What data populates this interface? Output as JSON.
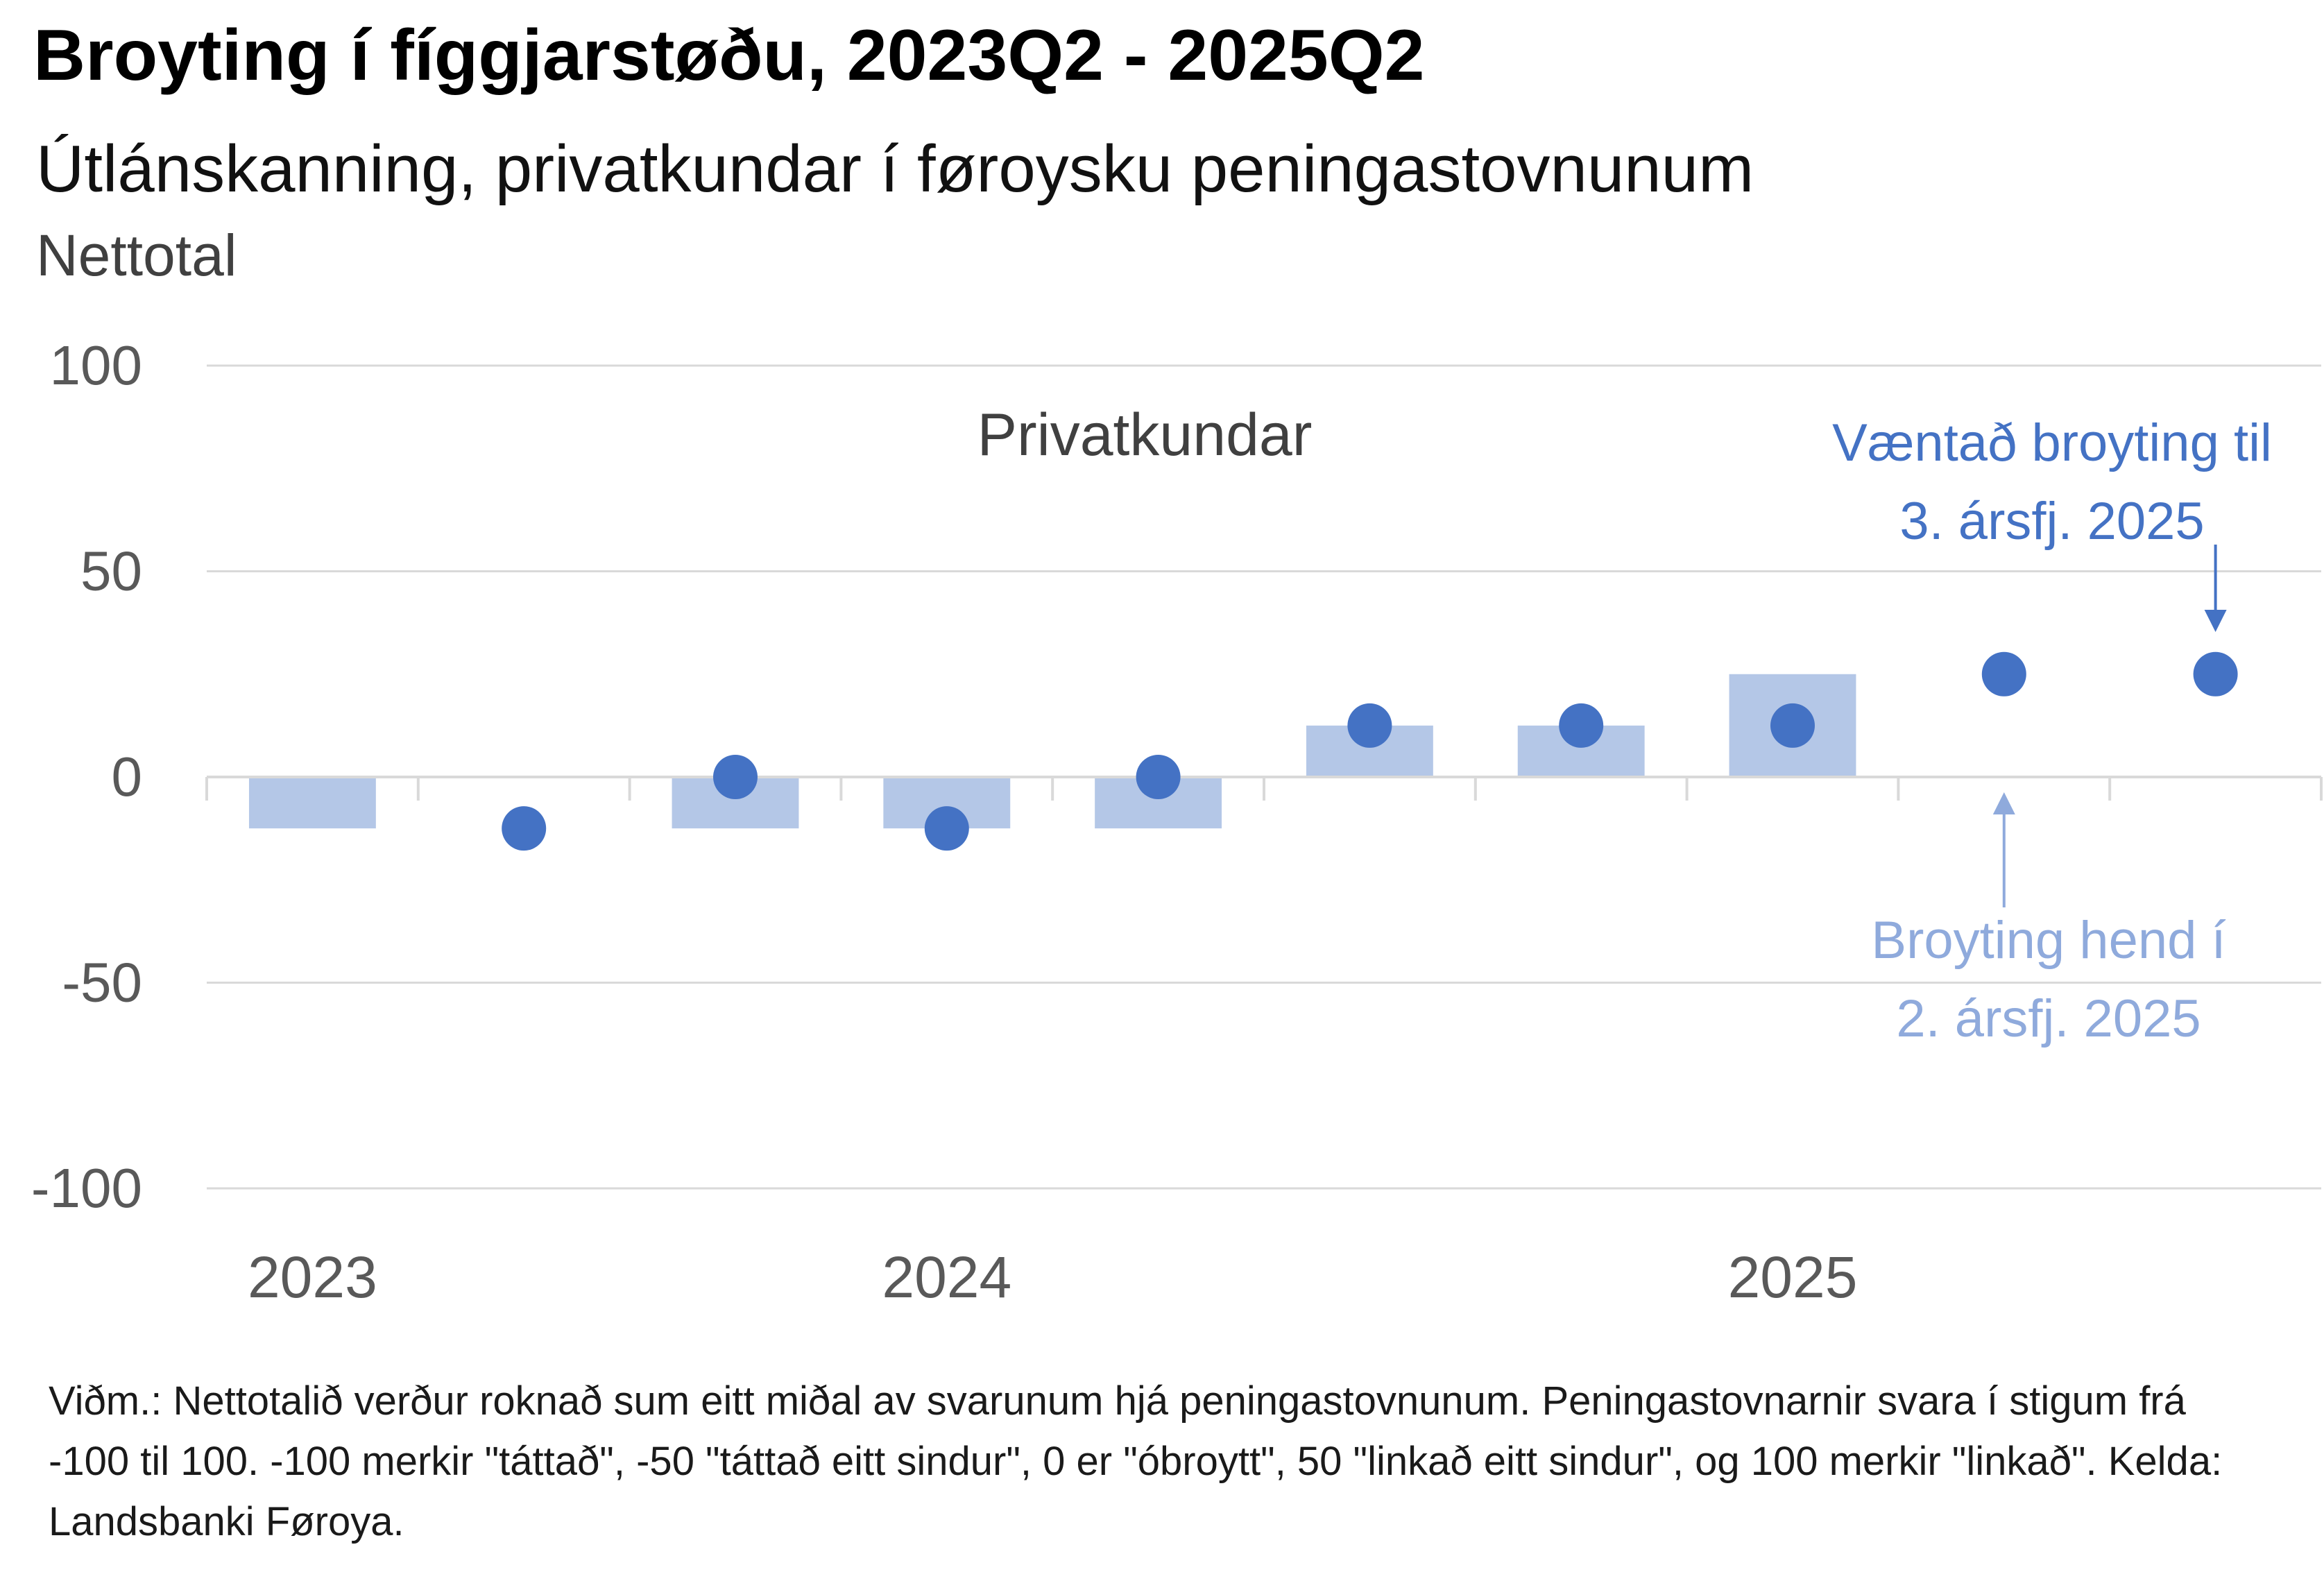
{
  "title": "Broyting í fíggjarstøðu, 2023Q2 - 2025Q2",
  "subtitle": "Útlánskanning, privatkundar í føroysku peningastovnunum",
  "unit_label": "Nettotal",
  "footnote": "Viðm.: Nettotalið verður roknað sum eitt miðal av svarunum hjá peningastovnunum. Peningastovnarnir svara í stigum frá -100 til 100. -100 merkir \"táttað\", -50 \"táttað eitt sindur\", 0 er \"óbroytt\", 50 \"linkað eitt sindur\", og 100 merkir \"linkað\". Kelda: Landsbanki Føroya.",
  "colors": {
    "bar": "#b4c7e7",
    "dot": "#4472c4",
    "annotation_expected": "#4472c4",
    "annotation_actual": "#8faadc",
    "grid": "#d9d9d9",
    "axis_text": "#595959"
  },
  "chart_data": {
    "type": "bar",
    "categories": [
      "2023Q2",
      "2023Q3",
      "2023Q4",
      "2024Q1",
      "2024Q2",
      "2024Q3",
      "2024Q4",
      "2025Q1",
      "2025Q2",
      "2025Q3"
    ],
    "x_tick_labels": [
      {
        "category": "2023Q2",
        "label": "2023"
      },
      {
        "category": "2024Q1",
        "label": "2024"
      },
      {
        "category": "2025Q1",
        "label": "2025"
      }
    ],
    "series": [
      {
        "kind": "bar",
        "values": [
          -12.5,
          null,
          -12.5,
          -12.5,
          -12.5,
          12.5,
          12.5,
          25,
          null,
          null
        ]
      },
      {
        "kind": "dot",
        "values": [
          null,
          -12.5,
          0,
          -12.5,
          0,
          12.5,
          12.5,
          12.5,
          25,
          25
        ]
      }
    ],
    "ylim": [
      -100,
      100
    ],
    "yticks": [
      100,
      50,
      0,
      -50,
      -100
    ],
    "grid": true,
    "panel_label": "Privatkundar",
    "annotations": [
      {
        "text_lines": [
          "Væntað broyting til",
          "3. ársfj. 2025"
        ],
        "points_to": "2025Q3"
      },
      {
        "text_lines": [
          "Broyting hend í",
          "2. ársfj. 2025"
        ],
        "points_to": "2025Q2"
      }
    ]
  }
}
